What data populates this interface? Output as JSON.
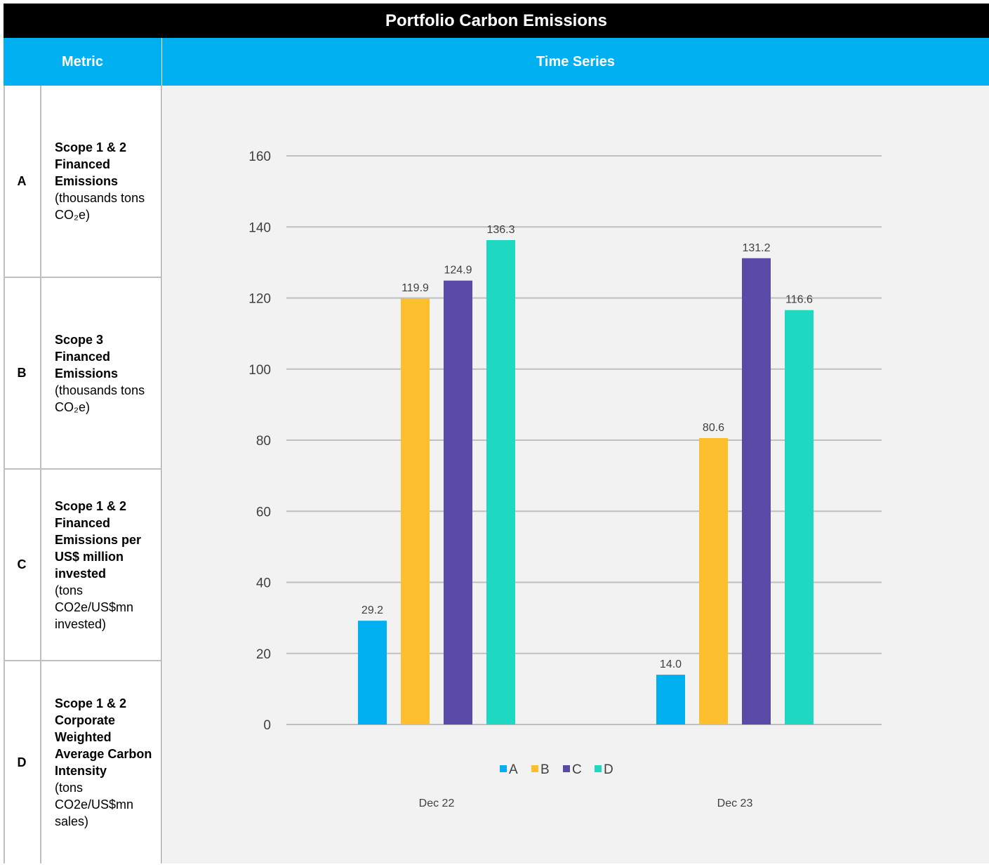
{
  "title": "Portfolio Carbon Emissions",
  "headers": {
    "metric": "Metric",
    "time_series": "Time Series"
  },
  "metrics": [
    {
      "letter": "A",
      "name": "Scope 1 & 2 Financed Emissions",
      "unit": "(thousands tons CO₂e)"
    },
    {
      "letter": "B",
      "name": "Scope 3 Financed Emissions",
      "unit": "(thousands tons CO₂e)"
    },
    {
      "letter": "C",
      "name": "Scope 1 & 2 Financed Emissions per US$ million invested",
      "unit": "(tons CO2e/US$mn invested)"
    },
    {
      "letter": "D",
      "name": "Scope 1 & 2 Corporate Weighted Average Carbon Intensity",
      "unit": "(tons CO2e/US$mn sales)"
    }
  ],
  "chart_data": {
    "type": "bar",
    "categories": [
      "Dec 22",
      "Dec 23"
    ],
    "series": [
      {
        "name": "A",
        "values": [
          29.2,
          14.0
        ],
        "color": "#00b0f0"
      },
      {
        "name": "B",
        "values": [
          119.9,
          80.6
        ],
        "color": "#fdbf2d"
      },
      {
        "name": "C",
        "values": [
          124.9,
          131.2
        ],
        "color": "#5b49a8"
      },
      {
        "name": "D",
        "values": [
          136.3,
          116.6
        ],
        "color": "#1ed8c2"
      }
    ],
    "data_labels": [
      [
        "29.2",
        "14.0"
      ],
      [
        "119.9",
        "80.6"
      ],
      [
        "124.9",
        "131.2"
      ],
      [
        "136.3",
        "116.6"
      ]
    ],
    "yticks": [
      0,
      20,
      40,
      60,
      80,
      100,
      120,
      140,
      160
    ],
    "ylim": [
      0,
      160
    ],
    "grid": true,
    "legend": "bottom-center"
  }
}
